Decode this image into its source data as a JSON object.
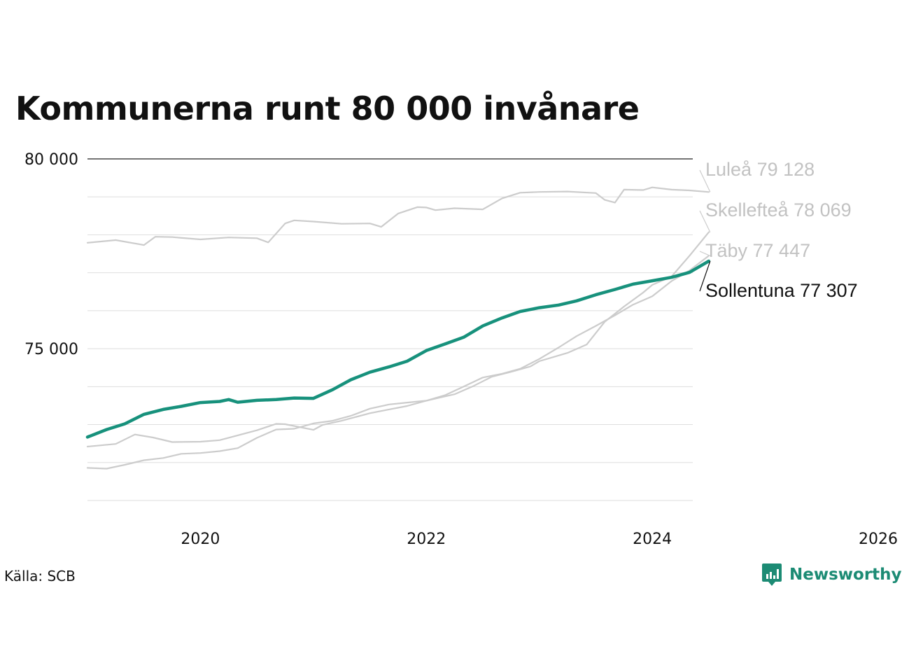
{
  "title": "Kommunerna runt 80 000 invånare",
  "source": "Källa: SCB",
  "brand": "Newsworthy",
  "chart_data": {
    "type": "line",
    "title": "Kommunerna runt 80 000 invånare",
    "xlabel": "",
    "ylabel": "",
    "xlim": [
      2019.0,
      2026.0
    ],
    "ylim": [
      71000,
      80000
    ],
    "x_ticks": [
      2020,
      2022,
      2024,
      2026
    ],
    "x_tick_labels": [
      "2020",
      "2022",
      "2024",
      "2026"
    ],
    "y_ticks": [
      75000,
      80000
    ],
    "y_tick_labels": [
      "75 000",
      "80 000"
    ],
    "grid": true,
    "legend": "end-of-line labels",
    "colors": {
      "highlight": "#17917c",
      "muted": "#cccccc",
      "label_muted": "#c2c2c2",
      "label_highlight": "#111111"
    },
    "series": [
      {
        "name": "Luleå",
        "end_label": "Luleå 79 128",
        "highlight": false,
        "points": [
          [
            2019.0,
            77790
          ],
          [
            2019.25,
            77860
          ],
          [
            2019.5,
            77730
          ],
          [
            2019.6,
            77950
          ],
          [
            2019.75,
            77940
          ],
          [
            2020.0,
            77880
          ],
          [
            2020.25,
            77930
          ],
          [
            2020.5,
            77910
          ],
          [
            2020.6,
            77800
          ],
          [
            2020.75,
            78300
          ],
          [
            2020.83,
            78380
          ],
          [
            2021.0,
            78350
          ],
          [
            2021.25,
            78290
          ],
          [
            2021.5,
            78300
          ],
          [
            2021.6,
            78210
          ],
          [
            2021.75,
            78560
          ],
          [
            2021.92,
            78730
          ],
          [
            2022.0,
            78720
          ],
          [
            2022.08,
            78650
          ],
          [
            2022.25,
            78700
          ],
          [
            2022.5,
            78670
          ],
          [
            2022.67,
            78960
          ],
          [
            2022.83,
            79110
          ],
          [
            2023.0,
            79130
          ],
          [
            2023.25,
            79140
          ],
          [
            2023.5,
            79100
          ],
          [
            2023.58,
            78920
          ],
          [
            2023.67,
            78850
          ],
          [
            2023.75,
            79190
          ],
          [
            2023.92,
            79180
          ],
          [
            2024.0,
            79250
          ],
          [
            2024.17,
            79190
          ],
          [
            2024.33,
            79170
          ],
          [
            2024.5,
            79128
          ]
        ]
      },
      {
        "name": "Skellefteå",
        "end_label": "Skellefteå 78 069",
        "highlight": false,
        "points": [
          [
            2019.0,
            72420
          ],
          [
            2019.25,
            72490
          ],
          [
            2019.42,
            72740
          ],
          [
            2019.58,
            72660
          ],
          [
            2019.75,
            72540
          ],
          [
            2020.0,
            72550
          ],
          [
            2020.17,
            72590
          ],
          [
            2020.5,
            72850
          ],
          [
            2020.67,
            73020
          ],
          [
            2020.75,
            73010
          ],
          [
            2021.0,
            72860
          ],
          [
            2021.08,
            72990
          ],
          [
            2021.25,
            73100
          ],
          [
            2021.5,
            73300
          ],
          [
            2021.67,
            73400
          ],
          [
            2021.83,
            73490
          ],
          [
            2022.0,
            73630
          ],
          [
            2022.25,
            73800
          ],
          [
            2022.42,
            74020
          ],
          [
            2022.58,
            74260
          ],
          [
            2022.75,
            74390
          ],
          [
            2022.92,
            74530
          ],
          [
            2023.0,
            74670
          ],
          [
            2023.25,
            74890
          ],
          [
            2023.42,
            75110
          ],
          [
            2023.58,
            75710
          ],
          [
            2023.75,
            76110
          ],
          [
            2023.92,
            76480
          ],
          [
            2024.0,
            76680
          ],
          [
            2024.17,
            76900
          ],
          [
            2024.33,
            77450
          ],
          [
            2024.5,
            78069
          ]
        ]
      },
      {
        "name": "Täby",
        "end_label": "Täby 77 447",
        "highlight": false,
        "points": [
          [
            2019.0,
            71860
          ],
          [
            2019.17,
            71840
          ],
          [
            2019.33,
            71940
          ],
          [
            2019.5,
            72060
          ],
          [
            2019.67,
            72120
          ],
          [
            2019.83,
            72230
          ],
          [
            2020.0,
            72250
          ],
          [
            2020.17,
            72300
          ],
          [
            2020.33,
            72380
          ],
          [
            2020.5,
            72650
          ],
          [
            2020.67,
            72870
          ],
          [
            2020.83,
            72890
          ],
          [
            2021.0,
            73030
          ],
          [
            2021.17,
            73100
          ],
          [
            2021.33,
            73230
          ],
          [
            2021.5,
            73420
          ],
          [
            2021.67,
            73530
          ],
          [
            2021.83,
            73580
          ],
          [
            2022.0,
            73630
          ],
          [
            2022.17,
            73780
          ],
          [
            2022.33,
            74000
          ],
          [
            2022.5,
            74240
          ],
          [
            2022.67,
            74340
          ],
          [
            2022.83,
            74470
          ],
          [
            2023.0,
            74730
          ],
          [
            2023.17,
            75030
          ],
          [
            2023.33,
            75330
          ],
          [
            2023.5,
            75600
          ],
          [
            2023.67,
            75880
          ],
          [
            2023.83,
            76160
          ],
          [
            2024.0,
            76380
          ],
          [
            2024.17,
            76780
          ],
          [
            2024.33,
            77060
          ],
          [
            2024.5,
            77447
          ]
        ]
      },
      {
        "name": "Sollentuna",
        "end_label": "Sollentuna 77 307",
        "highlight": true,
        "points": [
          [
            2019.0,
            72670
          ],
          [
            2019.17,
            72870
          ],
          [
            2019.33,
            73020
          ],
          [
            2019.5,
            73270
          ],
          [
            2019.67,
            73400
          ],
          [
            2019.83,
            73480
          ],
          [
            2020.0,
            73580
          ],
          [
            2020.17,
            73610
          ],
          [
            2020.25,
            73660
          ],
          [
            2020.33,
            73590
          ],
          [
            2020.5,
            73640
          ],
          [
            2020.67,
            73660
          ],
          [
            2020.83,
            73700
          ],
          [
            2021.0,
            73690
          ],
          [
            2021.17,
            73920
          ],
          [
            2021.33,
            74180
          ],
          [
            2021.5,
            74380
          ],
          [
            2021.67,
            74520
          ],
          [
            2021.83,
            74670
          ],
          [
            2022.0,
            74950
          ],
          [
            2022.17,
            75130
          ],
          [
            2022.33,
            75300
          ],
          [
            2022.5,
            75600
          ],
          [
            2022.67,
            75810
          ],
          [
            2022.83,
            75980
          ],
          [
            2023.0,
            76080
          ],
          [
            2023.17,
            76150
          ],
          [
            2023.33,
            76260
          ],
          [
            2023.5,
            76420
          ],
          [
            2023.67,
            76560
          ],
          [
            2023.83,
            76700
          ],
          [
            2024.0,
            76790
          ],
          [
            2024.17,
            76880
          ],
          [
            2024.33,
            77010
          ],
          [
            2024.5,
            77307
          ]
        ]
      }
    ]
  }
}
